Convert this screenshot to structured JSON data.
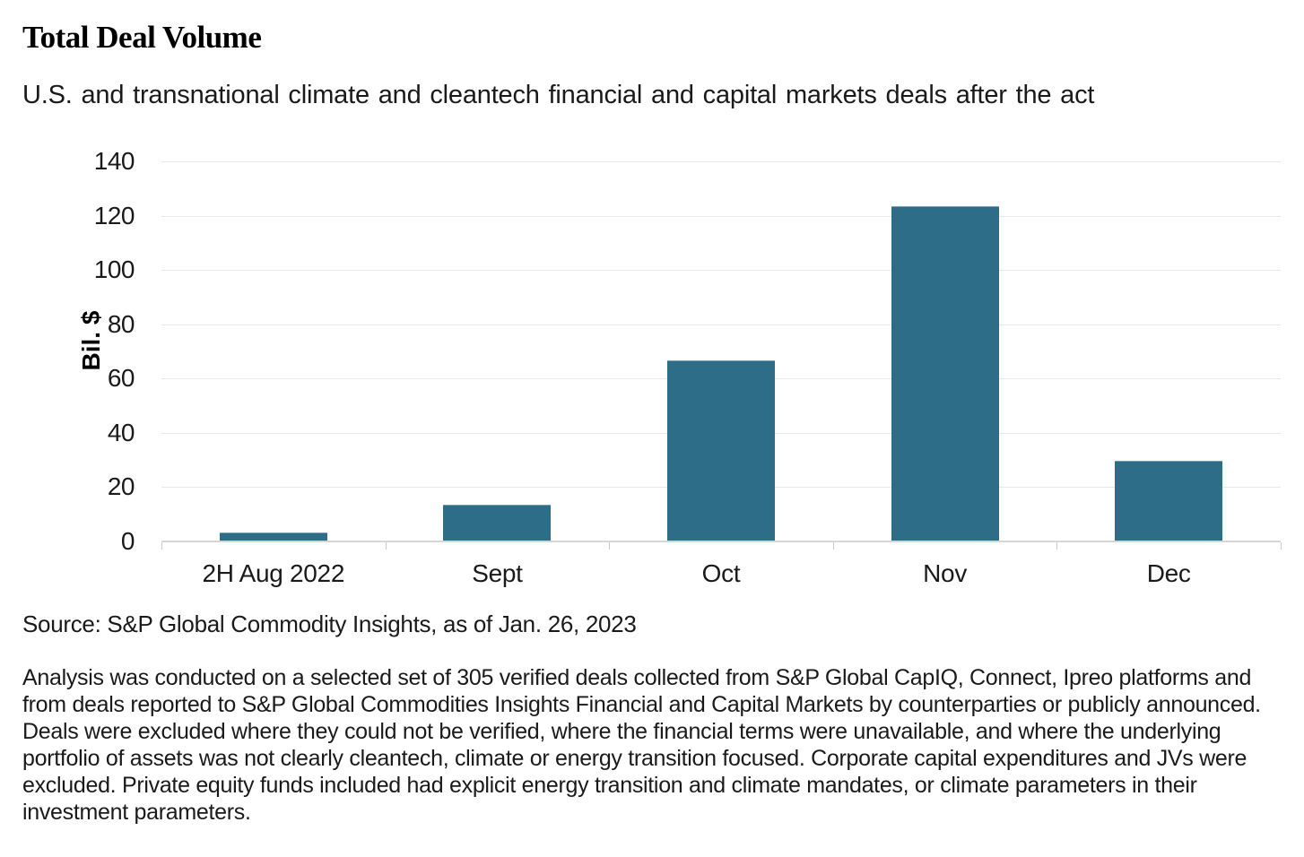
{
  "page": {
    "title": "Total Deal Volume",
    "subtitle": "U.S. and transnational climate and cleantech financial and capital markets deals after the act",
    "source": "Source: S&P Global Commodity Insights, as of Jan. 26, 2023",
    "footnote": "Analysis was conducted on a selected set of 305 verified deals collected from S&P Global CapIQ, Connect, Ipreo platforms and from deals reported to S&P Global Commodities Insights Financial and Capital Markets by counterparties or publicly announced. Deals were excluded where they could not be verified, where the financial terms were unavailable, and where the underlying portfolio of assets was not clearly cleantech, climate or energy transition focused. Corporate capital expenditures and JVs were excluded. Private equity funds included had explicit energy transition and climate mandates, or climate parameters in their investment parameters."
  },
  "chart_data": {
    "type": "bar",
    "title": "Total Deal Volume",
    "subtitle": "U.S. and transnational climate and cleantech financial and capital markets deals after the act",
    "categories": [
      "2H Aug 2022",
      "Sept",
      "Oct",
      "Nov",
      "Dec"
    ],
    "values": [
      2.5,
      13,
      66,
      123,
      29
    ],
    "xlabel": "",
    "ylabel": "Bil. $",
    "ylim": [
      0,
      140
    ],
    "yticks": [
      0,
      20,
      40,
      60,
      80,
      100,
      120,
      140
    ],
    "grid": true,
    "legend_position": "none",
    "bar_color": "#2d6d87",
    "gridline_color": "#e8e8e8"
  }
}
